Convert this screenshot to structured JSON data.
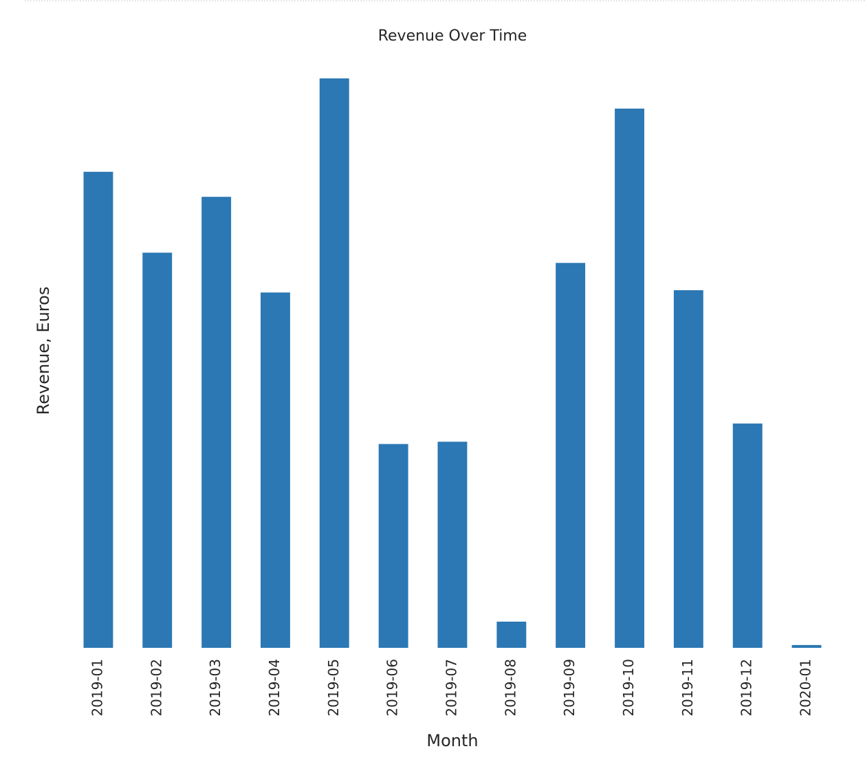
{
  "chart_data": {
    "type": "bar",
    "title": "Revenue Over Time",
    "xlabel": "Month",
    "ylabel": "Revenue, Euros",
    "categories": [
      "2019-01",
      "2019-02",
      "2019-03",
      "2019-04",
      "2019-05",
      "2019-06",
      "2019-07",
      "2019-08",
      "2019-09",
      "2019-10",
      "2019-11",
      "2019-12",
      "2020-01"
    ],
    "values": [
      83.6,
      69.4,
      79.2,
      62.4,
      100,
      35.8,
      36.2,
      4.6,
      67.6,
      94.7,
      62.8,
      39.4,
      0.5
    ],
    "ylim": [
      0,
      100
    ],
    "grid": false,
    "legend": "none",
    "bar_color": "#2b78b4",
    "y_ticks_shown": false
  }
}
